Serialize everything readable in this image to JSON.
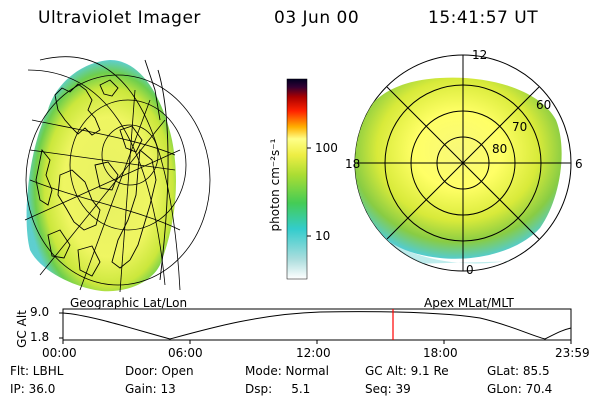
{
  "header": {
    "title": "Ultraviolet Imager",
    "date": "03 Jun 00",
    "time": "15:41:57 UT"
  },
  "left_panel": {
    "caption": "Geographic Lat/Lon"
  },
  "right_panel": {
    "caption": "Apex MLat/MLT",
    "mlt_labels": {
      "top": "12",
      "left": "18",
      "right": "6",
      "bottom": "0"
    },
    "lat_labels": [
      "60",
      "70",
      "80"
    ]
  },
  "colorbar": {
    "unit_label": "photon cm⁻²s⁻¹",
    "ticks": [
      "100",
      "10"
    ],
    "colors": [
      "#f0f0f0",
      "#33cccc",
      "#4dcc4d",
      "#c8e632",
      "#ffff66",
      "#ffb000",
      "#ff0000",
      "#990000",
      "#000033"
    ]
  },
  "altitude_plot": {
    "ylabel": "GC Alt",
    "yticks": [
      "9.0",
      "1.8"
    ],
    "xticks": [
      "00:00",
      "06:00",
      "12:00",
      "18:00",
      "23:59"
    ],
    "marker_color": "#ff0000"
  },
  "info": {
    "row1": [
      "Flt: LBHL",
      "Door: Open",
      "Mode: Normal",
      "GC Alt: 9.1 Re",
      "GLat: 85.5"
    ],
    "row2": [
      "IP: 36.0",
      "Gain: 13",
      "Dsp:     5.1",
      "Seq: 39",
      "GLon: 70.4"
    ]
  }
}
